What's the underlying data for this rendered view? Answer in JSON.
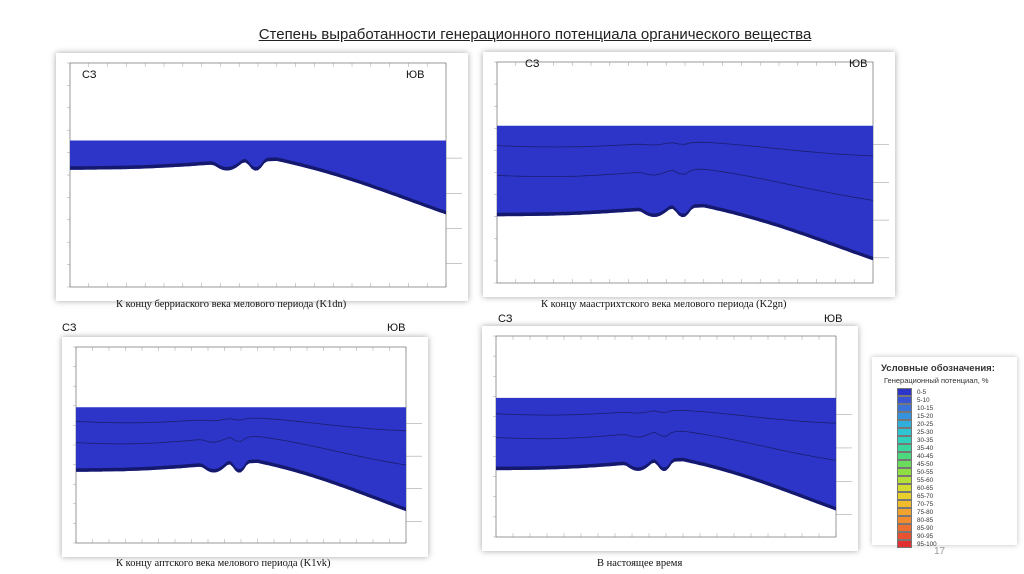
{
  "title": "Степень выработанности генерационного потенциала органического вещества",
  "panels": [
    {
      "left_label": "СЗ",
      "right_label": "ЮВ",
      "caption": "К концу берриаского века мелового периода (K1dn)"
    },
    {
      "left_label": "СЗ",
      "right_label": "ЮВ",
      "caption": "К концу маастрихтского века мелового периода (K2gn)"
    },
    {
      "left_label": "СЗ",
      "right_label": "ЮВ",
      "caption": "К концу аптского века мелового периода (K1vk)"
    },
    {
      "left_label": "СЗ",
      "right_label": "ЮВ",
      "caption": "В настоящее время"
    }
  ],
  "legend": {
    "title": "Условные обозначения:",
    "subtitle": "Генерационный потенциал, %",
    "items": [
      {
        "label": "0-5",
        "color": "#2d35c8"
      },
      {
        "label": "5-10",
        "color": "#3a56d4"
      },
      {
        "label": "10-15",
        "color": "#3a74d8"
      },
      {
        "label": "15-20",
        "color": "#3592dc"
      },
      {
        "label": "20-25",
        "color": "#30aedc"
      },
      {
        "label": "25-30",
        "color": "#2ec4d2"
      },
      {
        "label": "30-35",
        "color": "#31d0bc"
      },
      {
        "label": "35-40",
        "color": "#3ad69e"
      },
      {
        "label": "40-45",
        "color": "#4cd97e"
      },
      {
        "label": "45-50",
        "color": "#6bdc5c"
      },
      {
        "label": "50-55",
        "color": "#8fde44"
      },
      {
        "label": "55-60",
        "color": "#b4df38"
      },
      {
        "label": "60-65",
        "color": "#d4dc30"
      },
      {
        "label": "65-70",
        "color": "#e8d02c"
      },
      {
        "label": "70-75",
        "color": "#f0bc2c"
      },
      {
        "label": "75-80",
        "color": "#f2a22e"
      },
      {
        "label": "80-85",
        "color": "#f28a30"
      },
      {
        "label": "85-90",
        "color": "#ee6e30"
      },
      {
        "label": "90-95",
        "color": "#e85230"
      },
      {
        "label": "95-100",
        "color": "#e03030"
      }
    ]
  },
  "page_number": "17",
  "colors": {
    "fill": "#2d35c8",
    "dark": "#14196e",
    "grid": "#cfcfcf"
  }
}
